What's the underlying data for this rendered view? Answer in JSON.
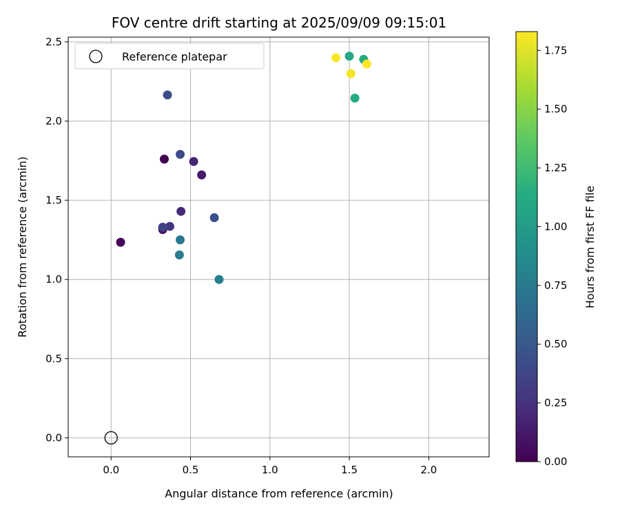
{
  "chart_data": {
    "type": "scatter",
    "title": "FOV centre drift starting at 2025/09/09 09:15:01",
    "xlabel": "Angular distance from reference (arcmin)",
    "ylabel": "Rotation from reference (arcmin)",
    "xlim": [
      -0.27,
      2.38
    ],
    "ylim": [
      -0.12,
      2.53
    ],
    "xticks": [
      0.0,
      0.5,
      1.0,
      1.5,
      2.0
    ],
    "xtick_labels": [
      "0.0",
      "0.5",
      "1.0",
      "1.5",
      "2.0"
    ],
    "yticks": [
      0.0,
      0.5,
      1.0,
      1.5,
      2.0,
      2.5
    ],
    "ytick_labels": [
      "0.0",
      "0.5",
      "1.0",
      "1.5",
      "2.0",
      "2.5"
    ],
    "grid": true,
    "legend": {
      "position": "top-left",
      "entries": [
        "Reference platepar"
      ]
    },
    "reference_point": {
      "x": 0.0,
      "y": 0.0,
      "label": "Reference platepar"
    },
    "colorbar": {
      "label": "Hours from first FF file",
      "range": [
        0.0,
        1.83
      ],
      "ticks": [
        0.0,
        0.25,
        0.5,
        0.75,
        1.0,
        1.25,
        1.5,
        1.75
      ],
      "tick_labels": [
        "0.00",
        "0.25",
        "0.50",
        "0.75",
        "1.00",
        "1.25",
        "1.50",
        "1.75"
      ],
      "colormap": "viridis"
    },
    "points": [
      {
        "x": 0.06,
        "y": 1.235,
        "hours": 0.02
      },
      {
        "x": 0.335,
        "y": 1.76,
        "hours": 0.0
      },
      {
        "x": 0.325,
        "y": 1.315,
        "hours": 0.08
      },
      {
        "x": 0.57,
        "y": 1.66,
        "hours": 0.12
      },
      {
        "x": 0.52,
        "y": 1.745,
        "hours": 0.18
      },
      {
        "x": 0.44,
        "y": 1.43,
        "hours": 0.2
      },
      {
        "x": 0.37,
        "y": 1.335,
        "hours": 0.28
      },
      {
        "x": 0.325,
        "y": 1.33,
        "hours": 0.36
      },
      {
        "x": 0.355,
        "y": 2.165,
        "hours": 0.42
      },
      {
        "x": 0.435,
        "y": 1.79,
        "hours": 0.4
      },
      {
        "x": 0.65,
        "y": 1.39,
        "hours": 0.45
      },
      {
        "x": 0.435,
        "y": 1.25,
        "hours": 0.72
      },
      {
        "x": 0.43,
        "y": 1.155,
        "hours": 0.75
      },
      {
        "x": 0.68,
        "y": 1.0,
        "hours": 0.78
      },
      {
        "x": 1.5,
        "y": 2.41,
        "hours": 1.1
      },
      {
        "x": 1.59,
        "y": 2.39,
        "hours": 1.12
      },
      {
        "x": 1.535,
        "y": 2.145,
        "hours": 1.13
      },
      {
        "x": 1.415,
        "y": 2.4,
        "hours": 1.82
      },
      {
        "x": 1.51,
        "y": 2.3,
        "hours": 1.8
      },
      {
        "x": 1.61,
        "y": 2.36,
        "hours": 1.83
      }
    ]
  }
}
